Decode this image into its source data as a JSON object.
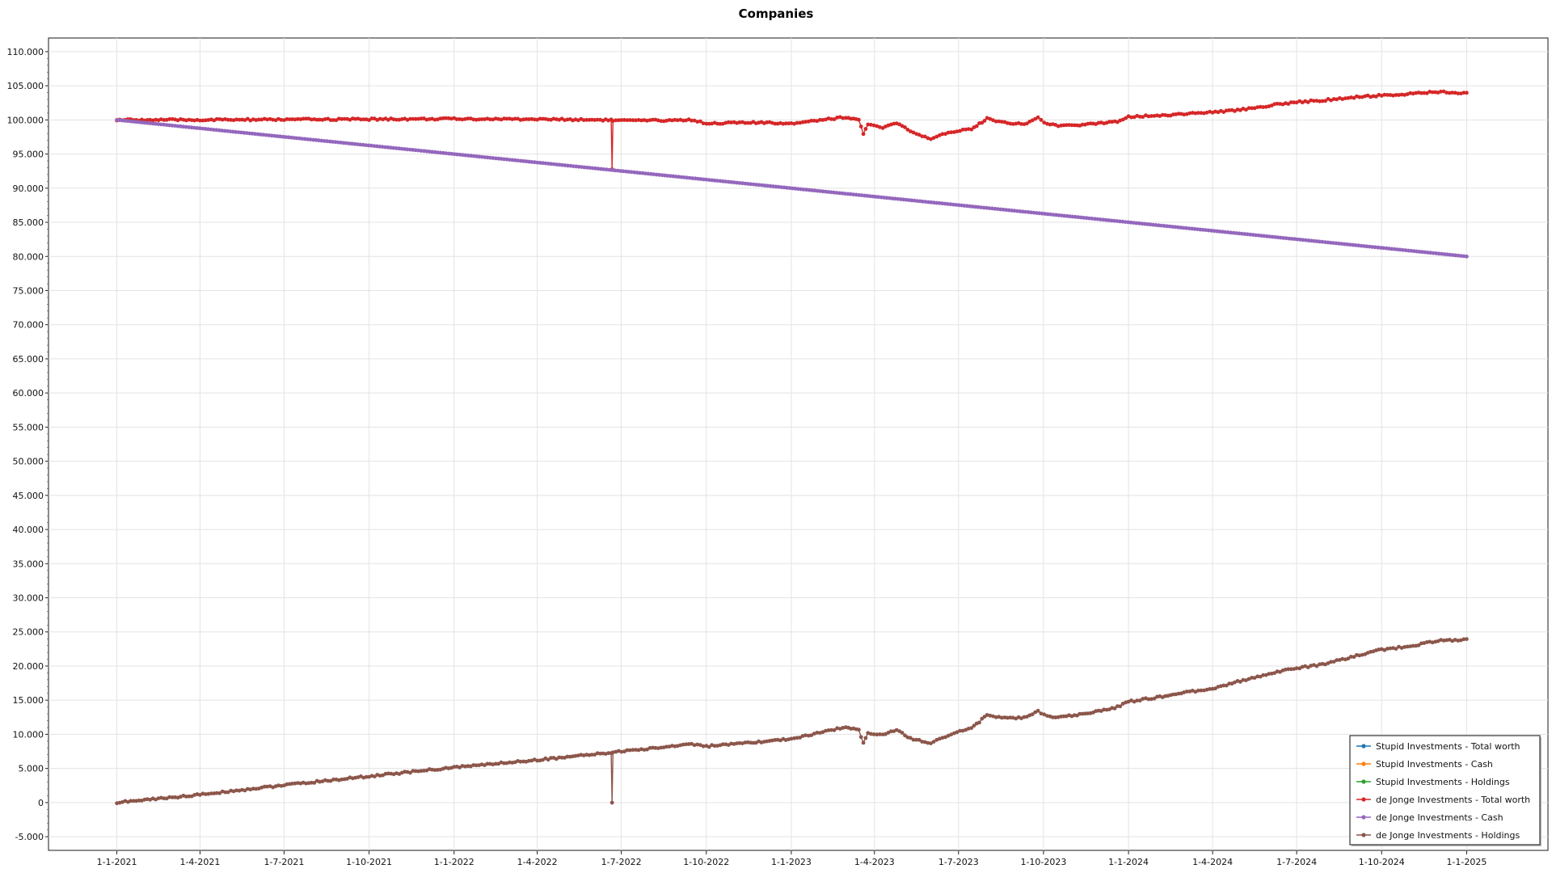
{
  "chart_data": {
    "type": "line",
    "title": "Companies",
    "xlabel": "",
    "ylabel": "",
    "ylim": [
      -7000,
      112000
    ],
    "yticks": [
      -5000,
      0,
      5000,
      10000,
      15000,
      20000,
      25000,
      30000,
      35000,
      40000,
      45000,
      50000,
      55000,
      60000,
      65000,
      70000,
      75000,
      80000,
      85000,
      90000,
      95000,
      100000,
      105000,
      110000
    ],
    "ytick_labels": [
      "-5.000",
      "0",
      "5.000",
      "10.000",
      "15.000",
      "20.000",
      "25.000",
      "30.000",
      "35.000",
      "40.000",
      "45.000",
      "50.000",
      "55.000",
      "60.000",
      "65.000",
      "70.000",
      "75.000",
      "80.000",
      "85.000",
      "90.000",
      "95.000",
      "100.000",
      "105.000",
      "110.000"
    ],
    "xlim": [
      "2020-10-19",
      "2025-03-30"
    ],
    "xticks": [
      "2021-01-01",
      "2021-04-01",
      "2021-07-01",
      "2021-10-01",
      "2022-01-01",
      "2022-04-01",
      "2022-07-01",
      "2022-10-01",
      "2023-01-01",
      "2023-04-01",
      "2023-07-01",
      "2023-10-01",
      "2024-01-01",
      "2024-04-01",
      "2024-07-01",
      "2024-10-01",
      "2025-01-01"
    ],
    "xtick_labels": [
      "1-1-2021",
      "1-4-2021",
      "1-7-2021",
      "1-10-2021",
      "1-1-2022",
      "1-4-2022",
      "1-7-2022",
      "1-10-2022",
      "1-1-2023",
      "1-4-2023",
      "1-7-2023",
      "1-10-2023",
      "1-1-2024",
      "1-4-2024",
      "1-7-2024",
      "1-10-2024",
      "1-1-2025"
    ],
    "grid": true,
    "legend_position": "bottom-right",
    "series": [
      {
        "name": "Stupid Investments - Total worth",
        "color": "#1f77b4",
        "points": []
      },
      {
        "name": "Stupid Investments - Cash",
        "color": "#ff7f0e",
        "points": []
      },
      {
        "name": "Stupid Investments - Holdings",
        "color": "#2ca02c",
        "points": []
      },
      {
        "name": "de Jonge Investments - Total worth",
        "color": "#d62728",
        "points": [
          [
            "2021-01-01",
            100000
          ],
          [
            "2021-04-01",
            100000
          ],
          [
            "2021-07-01",
            100050
          ],
          [
            "2021-10-01",
            100100
          ],
          [
            "2022-01-01",
            100150
          ],
          [
            "2022-04-01",
            100100
          ],
          [
            "2022-06-20",
            100000
          ],
          [
            "2022-06-21",
            92700
          ],
          [
            "2022-06-22",
            99900
          ],
          [
            "2022-08-01",
            99900
          ],
          [
            "2022-09-15",
            100000
          ],
          [
            "2022-10-01",
            99500
          ],
          [
            "2022-11-15",
            99600
          ],
          [
            "2023-01-01",
            99500
          ],
          [
            "2023-02-01",
            100000
          ],
          [
            "2023-03-01",
            100400
          ],
          [
            "2023-03-15",
            100000
          ],
          [
            "2023-03-20",
            98000
          ],
          [
            "2023-03-25",
            99300
          ],
          [
            "2023-04-10",
            98800
          ],
          [
            "2023-04-25",
            99600
          ],
          [
            "2023-05-10",
            98300
          ],
          [
            "2023-06-01",
            97100
          ],
          [
            "2023-06-20",
            98200
          ],
          [
            "2023-07-15",
            98700
          ],
          [
            "2023-08-01",
            100200
          ],
          [
            "2023-08-20",
            99600
          ],
          [
            "2023-09-10",
            99400
          ],
          [
            "2023-09-25",
            100300
          ],
          [
            "2023-10-05",
            99400
          ],
          [
            "2023-10-20",
            99100
          ],
          [
            "2023-11-15",
            99300
          ],
          [
            "2023-12-20",
            99800
          ],
          [
            "2024-01-01",
            100500
          ],
          [
            "2024-02-01",
            100600
          ],
          [
            "2024-03-01",
            100900
          ],
          [
            "2024-04-01",
            101100
          ],
          [
            "2024-05-01",
            101500
          ],
          [
            "2024-06-01",
            102100
          ],
          [
            "2024-07-01",
            102600
          ],
          [
            "2024-08-01",
            102900
          ],
          [
            "2024-09-01",
            103300
          ],
          [
            "2024-10-01",
            103600
          ],
          [
            "2024-11-01",
            103800
          ],
          [
            "2024-12-01",
            104100
          ],
          [
            "2025-01-01",
            103900
          ]
        ]
      },
      {
        "name": "de Jonge Investments - Cash",
        "color": "#9467bd",
        "points": [
          [
            "2021-01-01",
            100000
          ],
          [
            "2022-06-21",
            92650
          ],
          [
            "2025-01-01",
            80000
          ]
        ]
      },
      {
        "name": "de Jonge Investments - Holdings",
        "color": "#8c564b",
        "points": [
          [
            "2021-01-01",
            0
          ],
          [
            "2021-04-01",
            1150
          ],
          [
            "2021-07-01",
            2550
          ],
          [
            "2021-10-01",
            3850
          ],
          [
            "2022-01-01",
            5150
          ],
          [
            "2022-04-01",
            6250
          ],
          [
            "2022-06-20",
            7300
          ],
          [
            "2022-06-21",
            0
          ],
          [
            "2022-06-22",
            7400
          ],
          [
            "2022-08-01",
            7900
          ],
          [
            "2022-09-15",
            8600
          ],
          [
            "2022-10-01",
            8250
          ],
          [
            "2022-11-15",
            8700
          ],
          [
            "2023-01-01",
            9350
          ],
          [
            "2023-02-01",
            10200
          ],
          [
            "2023-03-01",
            11100
          ],
          [
            "2023-03-15",
            10700
          ],
          [
            "2023-03-20",
            8700
          ],
          [
            "2023-03-25",
            10200
          ],
          [
            "2023-04-10",
            9900
          ],
          [
            "2023-04-25",
            10600
          ],
          [
            "2023-05-10",
            9400
          ],
          [
            "2023-06-01",
            8700
          ],
          [
            "2023-06-20",
            9900
          ],
          [
            "2023-07-15",
            10900
          ],
          [
            "2023-08-01",
            12800
          ],
          [
            "2023-08-20",
            12400
          ],
          [
            "2023-09-10",
            12400
          ],
          [
            "2023-09-25",
            13400
          ],
          [
            "2023-10-05",
            12600
          ],
          [
            "2023-10-20",
            12500
          ],
          [
            "2023-11-15",
            13000
          ],
          [
            "2023-12-20",
            14000
          ],
          [
            "2024-01-01",
            14800
          ],
          [
            "2024-02-01",
            15400
          ],
          [
            "2024-03-01",
            16100
          ],
          [
            "2024-04-01",
            16700
          ],
          [
            "2024-05-01",
            17800
          ],
          [
            "2024-06-01",
            18900
          ],
          [
            "2024-07-01",
            19700
          ],
          [
            "2024-08-01",
            20300
          ],
          [
            "2024-09-01",
            21400
          ],
          [
            "2024-10-01",
            22400
          ],
          [
            "2024-11-01",
            22900
          ],
          [
            "2024-12-01",
            23700
          ],
          [
            "2025-01-01",
            23900
          ]
        ]
      }
    ]
  }
}
